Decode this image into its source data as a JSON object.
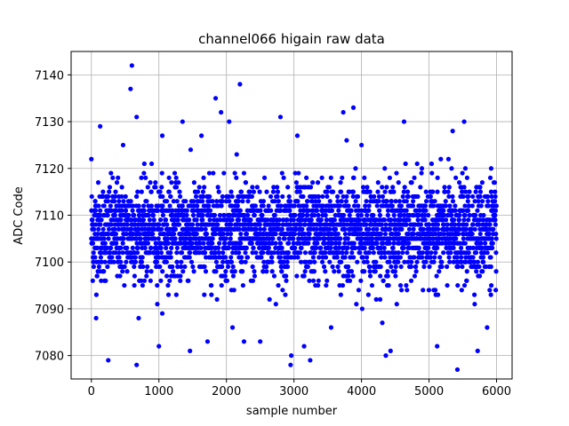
{
  "chart_data": {
    "type": "scatter",
    "title": "channel066 higain raw data",
    "xlabel": "sample number",
    "ylabel": "ADC Code",
    "xlim": [
      -300,
      6230
    ],
    "ylim": [
      7075,
      7145
    ],
    "xticks": [
      0,
      1000,
      2000,
      3000,
      4000,
      5000,
      6000
    ],
    "yticks": [
      7080,
      7090,
      7100,
      7110,
      7120,
      7130,
      7140
    ],
    "grid": true,
    "marker_color": "#0000ff",
    "series": [
      {
        "name": "",
        "description": "approximately 6000 samples, one per sample number, integer ADC codes clustered about 7106 with spread ~5 codes; points below are the visible extremes",
        "points": [
          [
            0,
            7122
          ],
          [
            70,
            7088
          ],
          [
            130,
            7129
          ],
          [
            250,
            7079
          ],
          [
            470,
            7125
          ],
          [
            580,
            7137
          ],
          [
            600,
            7142
          ],
          [
            670,
            7078
          ],
          [
            670,
            7131
          ],
          [
            1000,
            7082
          ],
          [
            1050,
            7127
          ],
          [
            1350,
            7130
          ],
          [
            1460,
            7081
          ],
          [
            1630,
            7127
          ],
          [
            1720,
            7083
          ],
          [
            1840,
            7135
          ],
          [
            1920,
            7132
          ],
          [
            2040,
            7130
          ],
          [
            2200,
            7138
          ],
          [
            2260,
            7083
          ],
          [
            2500,
            7083
          ],
          [
            2800,
            7131
          ],
          [
            2950,
            7078
          ],
          [
            2960,
            7080
          ],
          [
            3050,
            7127
          ],
          [
            3150,
            7082
          ],
          [
            3240,
            7079
          ],
          [
            3550,
            7086
          ],
          [
            3730,
            7132
          ],
          [
            3780,
            7126
          ],
          [
            3880,
            7133
          ],
          [
            4000,
            7125
          ],
          [
            4130,
            7097
          ],
          [
            4360,
            7080
          ],
          [
            4430,
            7081
          ],
          [
            4630,
            7130
          ],
          [
            5120,
            7082
          ],
          [
            5350,
            7128
          ],
          [
            5420,
            7077
          ],
          [
            5520,
            7130
          ],
          [
            5720,
            7081
          ],
          [
            5860,
            7086
          ],
          [
            5920,
            7120
          ]
        ]
      }
    ]
  }
}
